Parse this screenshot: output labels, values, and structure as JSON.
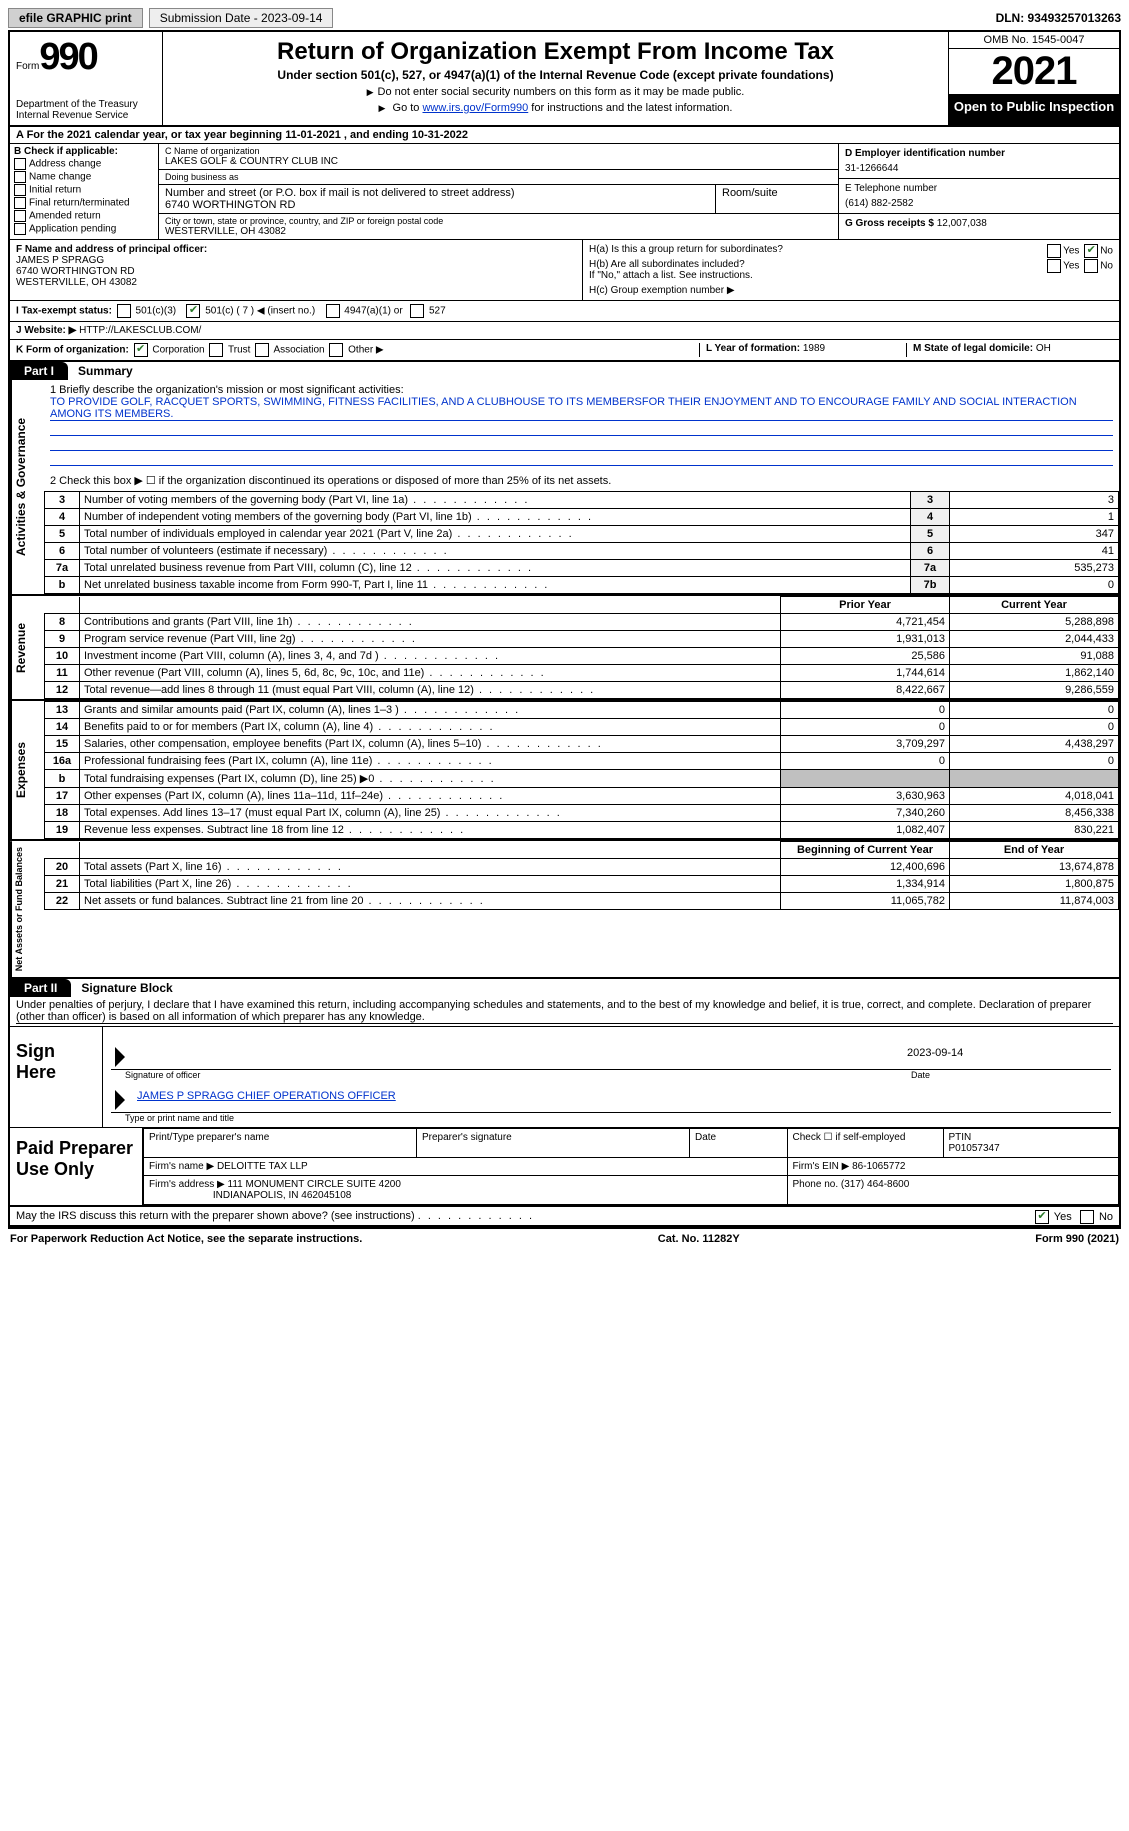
{
  "top_bar": {
    "efile": "efile GRAPHIC print",
    "submission": "Submission Date - 2023-09-14",
    "dln": "DLN: 93493257013263"
  },
  "header": {
    "form_prefix": "Form",
    "form_no": "990",
    "dept": "Department of the Treasury\nInternal Revenue Service",
    "title": "Return of Organization Exempt From Income Tax",
    "sub1": "Under section 501(c), 527, or 4947(a)(1) of the Internal Revenue Code (except private foundations)",
    "sub2": "Do not enter social security numbers on this form as it may be made public.",
    "sub3_a": "Go to ",
    "sub3_link": "www.irs.gov/Form990",
    "sub3_b": " for instructions and the latest information.",
    "omb": "OMB No. 1545-0047",
    "year": "2021",
    "open_pub": "Open to Public Inspection"
  },
  "period": "A For the 2021 calendar year, or tax year beginning 11-01-2021    , and ending 10-31-2022",
  "boxB": {
    "label": "B Check if applicable:",
    "items": [
      "Address change",
      "Name change",
      "Initial return",
      "Final return/terminated",
      "Amended return",
      "Application pending"
    ]
  },
  "boxC": {
    "name_lbl": "C Name of organization",
    "name": "LAKES GOLF & COUNTRY CLUB INC",
    "dba_lbl": "Doing business as",
    "dba": "",
    "street_lbl": "Number and street (or P.O. box if mail is not delivered to street address)",
    "street": "6740 WORTHINGTON RD",
    "room_lbl": "Room/suite",
    "room": "",
    "city_lbl": "City or town, state or province, country, and ZIP or foreign postal code",
    "city": "WESTERVILLE, OH  43082"
  },
  "boxD": {
    "ein_lbl": "D Employer identification number",
    "ein": "31-1266644",
    "tel_lbl": "E Telephone number",
    "tel": "(614) 882-2582",
    "gross_lbl": "G Gross receipts $",
    "gross": "12,007,038"
  },
  "boxF": {
    "lbl": "F Name and address of principal officer:",
    "name": "JAMES P SPRAGG",
    "addr1": "6740 WORTHINGTON RD",
    "addr2": "WESTERVILLE, OH  43082"
  },
  "boxH": {
    "ha": "H(a)  Is this a group return for subordinates?",
    "hb": "H(b)  Are all subordinates included?",
    "hb_note": "If \"No,\" attach a list. See instructions.",
    "hc": "H(c)  Group exemption number ▶"
  },
  "boxI": {
    "lbl": "I   Tax-exempt status:",
    "c3": "501(c)(3)",
    "c": "501(c) ( 7 ) ◀ (insert no.)",
    "a1": "4947(a)(1) or",
    "s527": "527"
  },
  "boxJ": {
    "lbl": "J  Website: ▶",
    "val": "HTTP://LAKESCLUB.COM/"
  },
  "boxK": {
    "lbl": "K Form of organization:",
    "opts": [
      "Corporation",
      "Trust",
      "Association",
      "Other ▶"
    ],
    "l_lbl": "L Year of formation:",
    "l_val": "1989",
    "m_lbl": "M State of legal domicile:",
    "m_val": "OH"
  },
  "part1": {
    "tab": "Part I",
    "title": "Summary",
    "line1_lbl": "1   Briefly describe the organization's mission or most significant activities:",
    "line1_val": "TO PROVIDE GOLF, RACQUET SPORTS, SWIMMING, FITNESS FACILITIES, AND A CLUBHOUSE TO ITS MEMBERSFOR THEIR ENJOYMENT AND TO ENCOURAGE FAMILY AND SOCIAL INTERACTION AMONG ITS MEMBERS.",
    "line2": "2   Check this box ▶ ☐  if the organization discontinued its operations or disposed of more than 25% of its net assets.",
    "tabs": {
      "activities": "Activities & Governance",
      "revenue": "Revenue",
      "expenses": "Expenses",
      "netassets": "Net Assets or Fund Balances"
    },
    "gov_lines": [
      {
        "n": "3",
        "d": "Number of voting members of the governing body (Part VI, line 1a)",
        "ln": "3",
        "v": "3"
      },
      {
        "n": "4",
        "d": "Number of independent voting members of the governing body (Part VI, line 1b)",
        "ln": "4",
        "v": "1"
      },
      {
        "n": "5",
        "d": "Total number of individuals employed in calendar year 2021 (Part V, line 2a)",
        "ln": "5",
        "v": "347"
      },
      {
        "n": "6",
        "d": "Total number of volunteers (estimate if necessary)",
        "ln": "6",
        "v": "41"
      },
      {
        "n": "7a",
        "d": "Total unrelated business revenue from Part VIII, column (C), line 12",
        "ln": "7a",
        "v": "535,273"
      },
      {
        "n": "b",
        "d": "Net unrelated business taxable income from Form 990-T, Part I, line 11",
        "ln": "7b",
        "v": "0"
      }
    ],
    "col_prior": "Prior Year",
    "col_curr": "Current Year",
    "rev_lines": [
      {
        "n": "8",
        "d": "Contributions and grants (Part VIII, line 1h)",
        "p": "4,721,454",
        "c": "5,288,898"
      },
      {
        "n": "9",
        "d": "Program service revenue (Part VIII, line 2g)",
        "p": "1,931,013",
        "c": "2,044,433"
      },
      {
        "n": "10",
        "d": "Investment income (Part VIII, column (A), lines 3, 4, and 7d )",
        "p": "25,586",
        "c": "91,088"
      },
      {
        "n": "11",
        "d": "Other revenue (Part VIII, column (A), lines 5, 6d, 8c, 9c, 10c, and 11e)",
        "p": "1,744,614",
        "c": "1,862,140"
      },
      {
        "n": "12",
        "d": "Total revenue—add lines 8 through 11 (must equal Part VIII, column (A), line 12)",
        "p": "8,422,667",
        "c": "9,286,559"
      }
    ],
    "exp_lines": [
      {
        "n": "13",
        "d": "Grants and similar amounts paid (Part IX, column (A), lines 1–3 )",
        "p": "0",
        "c": "0"
      },
      {
        "n": "14",
        "d": "Benefits paid to or for members (Part IX, column (A), line 4)",
        "p": "0",
        "c": "0"
      },
      {
        "n": "15",
        "d": "Salaries, other compensation, employee benefits (Part IX, column (A), lines 5–10)",
        "p": "3,709,297",
        "c": "4,438,297"
      },
      {
        "n": "16a",
        "d": "Professional fundraising fees (Part IX, column (A), line 11e)",
        "p": "0",
        "c": "0"
      },
      {
        "n": "b",
        "d": "Total fundraising expenses (Part IX, column (D), line 25) ▶0",
        "p": "",
        "c": "",
        "shade": true
      },
      {
        "n": "17",
        "d": "Other expenses (Part IX, column (A), lines 11a–11d, 11f–24e)",
        "p": "3,630,963",
        "c": "4,018,041"
      },
      {
        "n": "18",
        "d": "Total expenses. Add lines 13–17 (must equal Part IX, column (A), line 25)",
        "p": "7,340,260",
        "c": "8,456,338"
      },
      {
        "n": "19",
        "d": "Revenue less expenses. Subtract line 18 from line 12",
        "p": "1,082,407",
        "c": "830,221"
      }
    ],
    "col_beg": "Beginning of Current Year",
    "col_end": "End of Year",
    "na_lines": [
      {
        "n": "20",
        "d": "Total assets (Part X, line 16)",
        "p": "12,400,696",
        "c": "13,674,878"
      },
      {
        "n": "21",
        "d": "Total liabilities (Part X, line 26)",
        "p": "1,334,914",
        "c": "1,800,875"
      },
      {
        "n": "22",
        "d": "Net assets or fund balances. Subtract line 21 from line 20",
        "p": "11,065,782",
        "c": "11,874,003"
      }
    ]
  },
  "part2": {
    "tab": "Part II",
    "title": "Signature Block",
    "decl": "Under penalties of perjury, I declare that I have examined this return, including accompanying schedules and statements, and to the best of my knowledge and belief, it is true, correct, and complete. Declaration of preparer (other than officer) is based on all information of which preparer has any knowledge."
  },
  "sign": {
    "label": "Sign Here",
    "sig_lbl": "Signature of officer",
    "date_val": "2023-09-14",
    "date_lbl": "Date",
    "name": "JAMES P SPRAGG  CHIEF OPERATIONS OFFICER",
    "name_lbl": "Type or print name and title"
  },
  "preparer": {
    "label": "Paid Preparer Use Only",
    "print_lbl": "Print/Type preparer's name",
    "sig_lbl": "Preparer's signature",
    "date_lbl": "Date",
    "self_lbl": "Check ☐ if self-employed",
    "ptin_lbl": "PTIN",
    "ptin": "P01057347",
    "firm_name_lbl": "Firm's name     ▶",
    "firm_name": "DELOITTE TAX LLP",
    "firm_ein_lbl": "Firm's EIN ▶",
    "firm_ein": "86-1065772",
    "firm_addr_lbl": "Firm's address ▶",
    "firm_addr1": "111 MONUMENT CIRCLE SUITE 4200",
    "firm_addr2": "INDIANAPOLIS, IN  462045108",
    "phone_lbl": "Phone no.",
    "phone": "(317) 464-8600"
  },
  "discuss": {
    "q": "May the IRS discuss this return with the preparer shown above? (see instructions)",
    "yes": "Yes",
    "no": "No"
  },
  "footer": {
    "left": "For Paperwork Reduction Act Notice, see the separate instructions.",
    "mid": "Cat. No. 11282Y",
    "right": "Form 990 (2021)"
  }
}
